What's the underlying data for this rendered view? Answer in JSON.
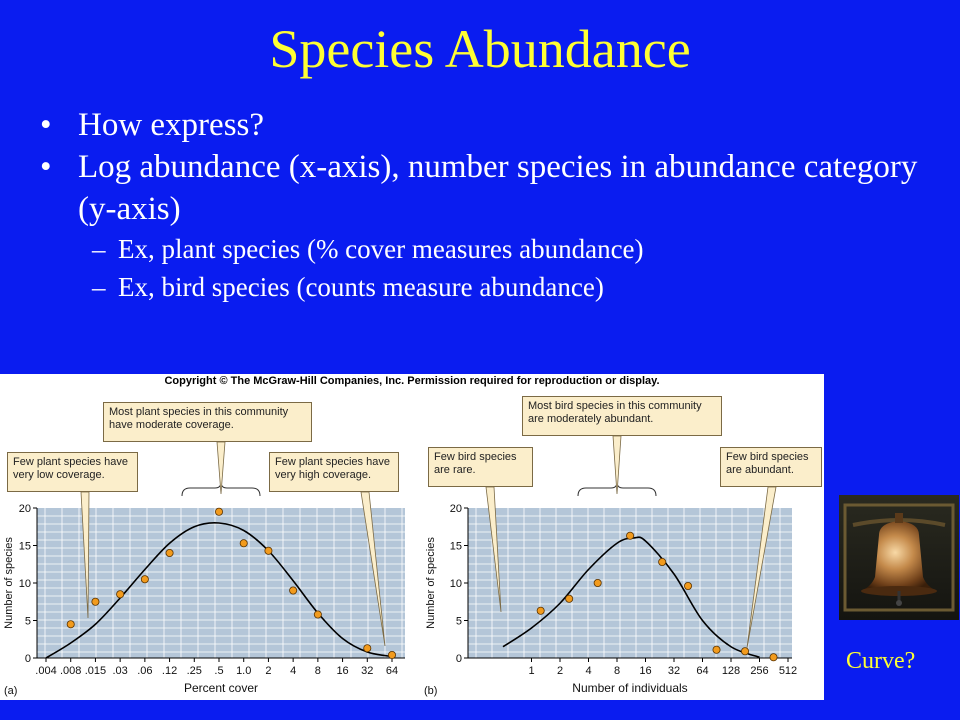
{
  "slide": {
    "title": "Species Abundance",
    "bullets": [
      "How express?",
      "Log abundance (x-axis), number species in abundance category (y-axis)"
    ],
    "sub_bullets": [
      "Ex, plant species (% cover measures abundance)",
      "Ex, bird species (counts measure abundance)"
    ],
    "curve_question": "Curve?",
    "colors": {
      "background": "#0a1cf0",
      "title": "#ffff33",
      "text": "#ffffff"
    }
  },
  "figure": {
    "copyright": "Copyright © The McGraw-Hill Companies, Inc. Permission required for reproduction or display.",
    "panel_a": {
      "callout_middle": "Most plant species in this community have moderate coverage.",
      "callout_left": "Few plant species have very low coverage.",
      "callout_right": "Few plant species have very high coverage."
    },
    "panel_b": {
      "callout_middle": "Most bird species in this community are moderately abundant.",
      "callout_left": "Few bird species are rare.",
      "callout_right": "Few bird species are abundant."
    }
  },
  "chart_data": [
    {
      "type": "scatter",
      "panel_label": "(a)",
      "xlabel": "Percent cover",
      "ylabel": "Number of species",
      "x_ticks": [
        ".004",
        ".008",
        ".015",
        ".03",
        ".06",
        ".12",
        ".25",
        ".5",
        "1.0",
        "2",
        "4",
        "8",
        "16",
        "32",
        "64"
      ],
      "y_ticks": [
        0,
        5,
        10,
        15,
        20
      ],
      "ylim": [
        0,
        20
      ],
      "points": [
        {
          "x": ".008",
          "y": 4.5
        },
        {
          "x": ".015",
          "y": 7.5
        },
        {
          "x": ".03",
          "y": 8.5
        },
        {
          "x": ".06",
          "y": 10.5
        },
        {
          "x": ".12",
          "y": 14
        },
        {
          "x": ".5",
          "y": 19.5
        },
        {
          "x": "1.0",
          "y": 15.3
        },
        {
          "x": "2",
          "y": 14.3
        },
        {
          "x": "4",
          "y": 9
        },
        {
          "x": "8",
          "y": 5.8
        },
        {
          "x": "32",
          "y": 1.3
        },
        {
          "x": "64",
          "y": 0.4
        }
      ],
      "curve": [
        {
          "x": ".004",
          "y": 0
        },
        {
          "x": ".008",
          "y": 2
        },
        {
          "x": ".015",
          "y": 4.5
        },
        {
          "x": ".03",
          "y": 8
        },
        {
          "x": ".06",
          "y": 11.8
        },
        {
          "x": ".12",
          "y": 15.3
        },
        {
          "x": ".25",
          "y": 17.5
        },
        {
          "x": ".5",
          "y": 18
        },
        {
          "x": "1.0",
          "y": 17
        },
        {
          "x": "2",
          "y": 14.3
        },
        {
          "x": "4",
          "y": 10.3
        },
        {
          "x": "8",
          "y": 6
        },
        {
          "x": "16",
          "y": 2.6
        },
        {
          "x": "32",
          "y": 0.8
        },
        {
          "x": "64",
          "y": 0.2
        }
      ],
      "grid": true,
      "colors": {
        "plot_bg": "#b4c6d8",
        "grid": "#ffffff",
        "point": "#f29b1d",
        "curve": "#000000"
      }
    },
    {
      "type": "scatter",
      "panel_label": "(b)",
      "xlabel": "Number of individuals",
      "ylabel": "Number of species",
      "x_ticks": [
        "1",
        "2",
        "4",
        "8",
        "16",
        "32",
        "64",
        "128",
        "256",
        "512"
      ],
      "y_ticks": [
        0,
        5,
        10,
        15,
        20
      ],
      "ylim": [
        0,
        20
      ],
      "points": [
        {
          "x": 1.25,
          "y": 6.3
        },
        {
          "x": 2.5,
          "y": 7.9
        },
        {
          "x": 5,
          "y": 10
        },
        {
          "x": 11,
          "y": 16.3
        },
        {
          "x": 24,
          "y": 12.8
        },
        {
          "x": 45,
          "y": 9.6
        },
        {
          "x": 90,
          "y": 1.1
        },
        {
          "x": 180,
          "y": 0.9
        },
        {
          "x": 360,
          "y": 0.1
        }
      ],
      "curve": [
        {
          "x": 0.5,
          "y": 1.5
        },
        {
          "x": 1,
          "y": 4
        },
        {
          "x": 2,
          "y": 7.3
        },
        {
          "x": 4,
          "y": 11.8
        },
        {
          "x": 8,
          "y": 15.3
        },
        {
          "x": 12,
          "y": 16
        },
        {
          "x": 16,
          "y": 15.6
        },
        {
          "x": 32,
          "y": 11.2
        },
        {
          "x": 64,
          "y": 5
        },
        {
          "x": 128,
          "y": 1.5
        },
        {
          "x": 256,
          "y": 0.1
        }
      ],
      "grid": true,
      "colors": {
        "plot_bg": "#b4c6d8",
        "grid": "#ffffff",
        "point": "#f29b1d",
        "curve": "#000000"
      }
    }
  ]
}
